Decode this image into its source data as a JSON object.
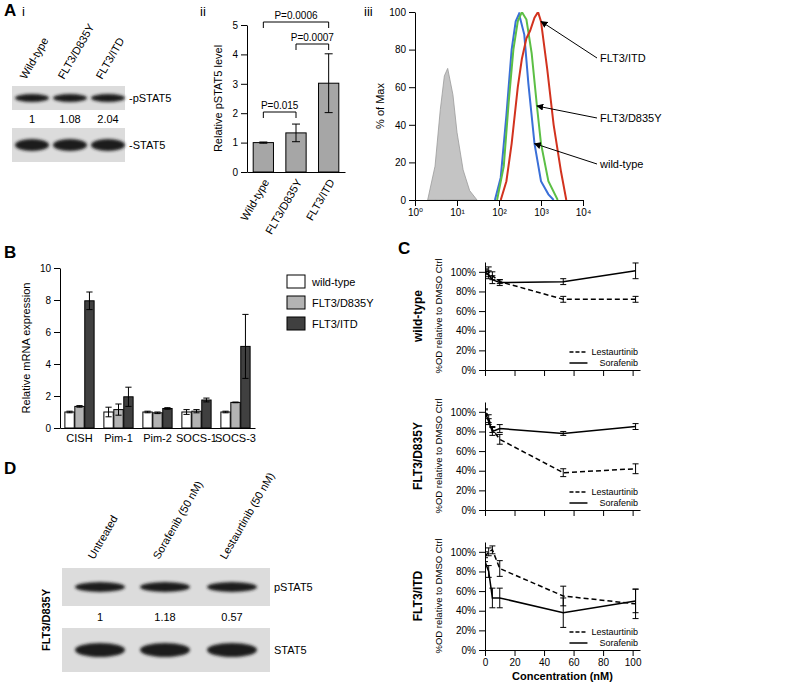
{
  "panel_labels": [
    "A",
    "B",
    "C",
    "D"
  ],
  "subpanel_labels": [
    "i",
    "ii",
    "iii"
  ],
  "blots": [
    {
      "lanes": [
        "Wild-type",
        "FLT3/D835Y",
        "FLT3/ITD"
      ],
      "rows": [
        "-pSTAT5",
        "-STAT5"
      ],
      "quantification": [
        1,
        1.08,
        2.04
      ]
    },
    {
      "lanes": [
        "Untreated",
        "Sorafenib (50 nM)",
        "Lestaurtinib (50 nM)"
      ],
      "rows": [
        "pSTAT5",
        "STAT5"
      ],
      "quantification": [
        1,
        1.18,
        0.57
      ],
      "cell_line": "FLT3/D835Y"
    }
  ],
  "chart_data": [
    {
      "type": "bar",
      "categories": [
        "Wild-type",
        "FLT3/D835Y",
        "FLT3/ITD"
      ],
      "values": [
        1,
        1.33,
        3.02
      ],
      "errors": [
        0.02,
        0.3,
        1.0
      ],
      "color": "#a6a6a6",
      "y_label": "Relative pSTAT5 level",
      "ylim": [
        0,
        5
      ],
      "yticks": [
        0,
        1,
        2,
        3,
        4,
        5
      ],
      "annotations": [
        {
          "text": "P=0.015",
          "between": [
            "Wild-type",
            "FLT3/D835Y"
          ]
        },
        {
          "text": "P=0.0006",
          "between": [
            "Wild-type",
            "FLT3/ITD"
          ]
        },
        {
          "text": "P=0.0007",
          "between": [
            "FLT3/D835Y",
            "FLT3/ITD"
          ]
        }
      ]
    },
    {
      "type": "line",
      "log": "x",
      "y_label": "% of Max",
      "xlim": [
        1,
        10000
      ],
      "xticks": [
        {
          "value": 1,
          "label": "10⁰"
        },
        {
          "value": 10,
          "label": "10¹"
        },
        {
          "value": 100,
          "label": "10²"
        },
        {
          "value": 1000,
          "label": "10³"
        },
        {
          "value": 10000,
          "label": "10⁴"
        }
      ],
      "ylim": [
        0,
        100
      ],
      "yticks": [
        0,
        20,
        40,
        60,
        80,
        100
      ],
      "series": [
        {
          "type": "area",
          "color": "#c4c4c4",
          "x": [
            2,
            3,
            4,
            5,
            6,
            8,
            10,
            14,
            20,
            30
          ],
          "values": [
            0,
            18,
            48,
            66,
            70,
            56,
            36,
            16,
            5,
            0
          ]
        },
        {
          "name": "wild-type",
          "color": "#3a6fd8",
          "x": [
            80,
            110,
            150,
            200,
            250,
            300,
            400,
            500,
            700,
            1000,
            1500,
            2000
          ],
          "values": [
            0,
            12,
            45,
            80,
            95,
            99,
            88,
            62,
            30,
            10,
            3,
            0
          ]
        },
        {
          "name": "FLT3/D835Y",
          "color": "#5cbf45",
          "x": [
            90,
            130,
            170,
            220,
            280,
            350,
            450,
            600,
            800,
            1000,
            1500,
            2500
          ],
          "values": [
            0,
            18,
            52,
            80,
            95,
            100,
            96,
            78,
            50,
            30,
            10,
            0
          ]
        },
        {
          "name": "FLT3/ITD",
          "color": "#d2321e",
          "x": [
            110,
            150,
            200,
            280,
            350,
            450,
            550,
            700,
            850,
            1000,
            1400,
            2000,
            3000,
            4000
          ],
          "values": [
            0,
            10,
            30,
            60,
            75,
            86,
            90,
            97,
            100,
            95,
            70,
            40,
            15,
            0
          ]
        }
      ]
    },
    {
      "type": "bar",
      "categories": [
        "CISH",
        "Pim-1",
        "Pim-2",
        "SOCS-1",
        "SOCS-3"
      ],
      "y_label": "Relative mRNA expression",
      "ylim": [
        0,
        10
      ],
      "yticks": [
        0,
        2,
        4,
        6,
        8,
        10
      ],
      "legend": "upper right",
      "series": [
        {
          "name": "wild-type",
          "color": "#ffffff",
          "values": [
            1,
            1,
            1,
            1,
            1
          ],
          "errors": [
            0.05,
            0.3,
            0.05,
            0.15,
            0.05
          ]
        },
        {
          "name": "FLT3/D835Y",
          "color": "#b3b3b3",
          "values": [
            1.35,
            1.15,
            0.95,
            1.05,
            1.6
          ],
          "errors": [
            0.05,
            0.35,
            0.05,
            0.1,
            0.02
          ]
        },
        {
          "name": "FLT3/ITD",
          "color": "#404040",
          "values": [
            7.95,
            1.95,
            1.22,
            1.75,
            5.1
          ],
          "errors": [
            0.55,
            0.6,
            0.05,
            0.12,
            2.0
          ]
        }
      ]
    },
    {
      "type": "line",
      "title": "wild-type",
      "y_label": "%OD relative to DMSO Ctrl",
      "x": [
        0,
        2.5,
        5,
        10,
        53,
        102
      ],
      "xlim": [
        0,
        105
      ],
      "xticks": [
        0,
        20,
        40,
        60,
        80,
        100
      ],
      "ylim": [
        0,
        110
      ],
      "yticks": [
        {
          "value": 0,
          "label": "0%"
        },
        {
          "value": 20,
          "label": "20%"
        },
        {
          "value": 40,
          "label": "40%"
        },
        {
          "value": 60,
          "label": "60%"
        },
        {
          "value": 80,
          "label": "80%"
        },
        {
          "value": 100,
          "label": "100%"
        }
      ],
      "legend": "lower right",
      "tick_labels": "y",
      "series": [
        {
          "name": "Lestaurtinib",
          "color": "#000000",
          "line_style": "dashed",
          "values": [
            100,
            100,
            96,
            90,
            72,
            72
          ],
          "errors": [
            3,
            5,
            4,
            2,
            3,
            3
          ]
        },
        {
          "name": "Sorafenib",
          "color": "#000000",
          "line_style": "solid",
          "values": [
            100,
            97,
            92,
            89,
            90,
            101
          ],
          "errors": [
            2,
            4,
            4,
            3,
            3,
            8
          ]
        }
      ]
    },
    {
      "type": "line",
      "title": "FLT3/D835Y",
      "y_label": "%OD relative to DMSO Ctrl",
      "x": [
        0,
        2.5,
        5,
        10,
        53,
        102
      ],
      "xlim": [
        0,
        105
      ],
      "xticks": [
        0,
        20,
        40,
        60,
        80,
        100
      ],
      "ylim": [
        0,
        110
      ],
      "yticks": [
        {
          "value": 0,
          "label": "0%"
        },
        {
          "value": 20,
          "label": "20%"
        },
        {
          "value": 40,
          "label": "40%"
        },
        {
          "value": 60,
          "label": "60%"
        },
        {
          "value": 80,
          "label": "80%"
        },
        {
          "value": 100,
          "label": "100%"
        }
      ],
      "legend": "lower right",
      "tick_labels": "y",
      "series": [
        {
          "name": "Lestaurtinib",
          "color": "#000000",
          "line_style": "dashed",
          "values": [
            100,
            93,
            82,
            72,
            38,
            42
          ],
          "errors": [
            2,
            4,
            3,
            5,
            4,
            5
          ]
        },
        {
          "name": "Sorafenib",
          "color": "#000000",
          "line_style": "solid",
          "values": [
            100,
            90,
            80,
            83,
            78,
            85
          ],
          "errors": [
            3,
            3,
            4,
            4,
            2,
            3
          ]
        }
      ]
    },
    {
      "type": "line",
      "title": "FLT3/ITD",
      "y_label": "%OD relative to DMSO Ctrl",
      "x_label": "Concentration (nM)",
      "x": [
        0,
        2.5,
        5,
        10,
        53,
        102
      ],
      "xlim": [
        0,
        105
      ],
      "xticks": [
        0,
        20,
        40,
        60,
        80,
        100
      ],
      "ylim": [
        0,
        110
      ],
      "yticks": [
        {
          "value": 0,
          "label": "0%"
        },
        {
          "value": 20,
          "label": "20%"
        },
        {
          "value": 40,
          "label": "40%"
        },
        {
          "value": 60,
          "label": "60%"
        },
        {
          "value": 80,
          "label": "80%"
        },
        {
          "value": 100,
          "label": "100%"
        }
      ],
      "legend": "lower right",
      "series": [
        {
          "name": "Lestaurtinib",
          "color": "#000000",
          "line_style": "dashed",
          "values": [
            95,
            100,
            102,
            83,
            55,
            47
          ],
          "errors": [
            5,
            4,
            4,
            8,
            10,
            15
          ]
        },
        {
          "name": "Sorafenib",
          "color": "#000000",
          "line_style": "solid",
          "values": [
            90,
            80,
            53,
            53,
            38,
            50
          ],
          "errors": [
            4,
            6,
            10,
            10,
            15,
            12
          ]
        }
      ]
    }
  ]
}
